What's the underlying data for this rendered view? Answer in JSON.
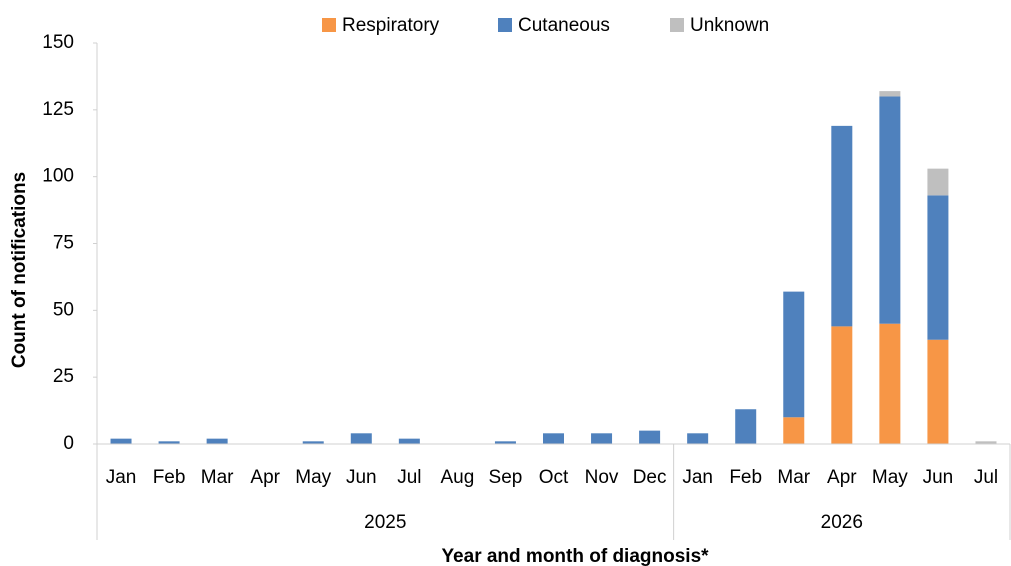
{
  "chart_data": {
    "type": "stacked_bar",
    "x_axis_label": "Year and month of diagnosis*",
    "y_axis_label": "Count of notifications",
    "categories": [
      "Jan",
      "Feb",
      "Mar",
      "Apr",
      "May",
      "Jun",
      "Jul",
      "Aug",
      "Sep",
      "Oct",
      "Nov",
      "Dec",
      "Jan",
      "Feb",
      "Mar",
      "Apr",
      "May",
      "Jun",
      "Jul"
    ],
    "x_groups": [
      {
        "label": "2025",
        "size": 12
      },
      {
        "label": "2026",
        "size": 7
      }
    ],
    "series": [
      {
        "name": "Respiratory",
        "color": "#f79646",
        "values": [
          0,
          0,
          0,
          0,
          0,
          0,
          0,
          0,
          0,
          0,
          0,
          0,
          0,
          0,
          10,
          44,
          45,
          39,
          0
        ]
      },
      {
        "name": "Cutaneous",
        "color": "#4f81bd",
        "values": [
          2,
          1,
          2,
          0,
          1,
          4,
          2,
          0,
          1,
          4,
          4,
          5,
          4,
          13,
          47,
          75,
          85,
          54,
          0
        ]
      },
      {
        "name": "Unknown",
        "color": "#bfbfbf",
        "values": [
          0,
          0,
          0,
          0,
          0,
          0,
          0,
          0,
          0,
          0,
          0,
          0,
          0,
          0,
          0,
          0,
          2,
          10,
          1
        ]
      }
    ],
    "ylim": [
      0,
      150
    ],
    "yticks": [
      0,
      25,
      50,
      75,
      100,
      125,
      150
    ],
    "legend": "top",
    "grid": false
  }
}
